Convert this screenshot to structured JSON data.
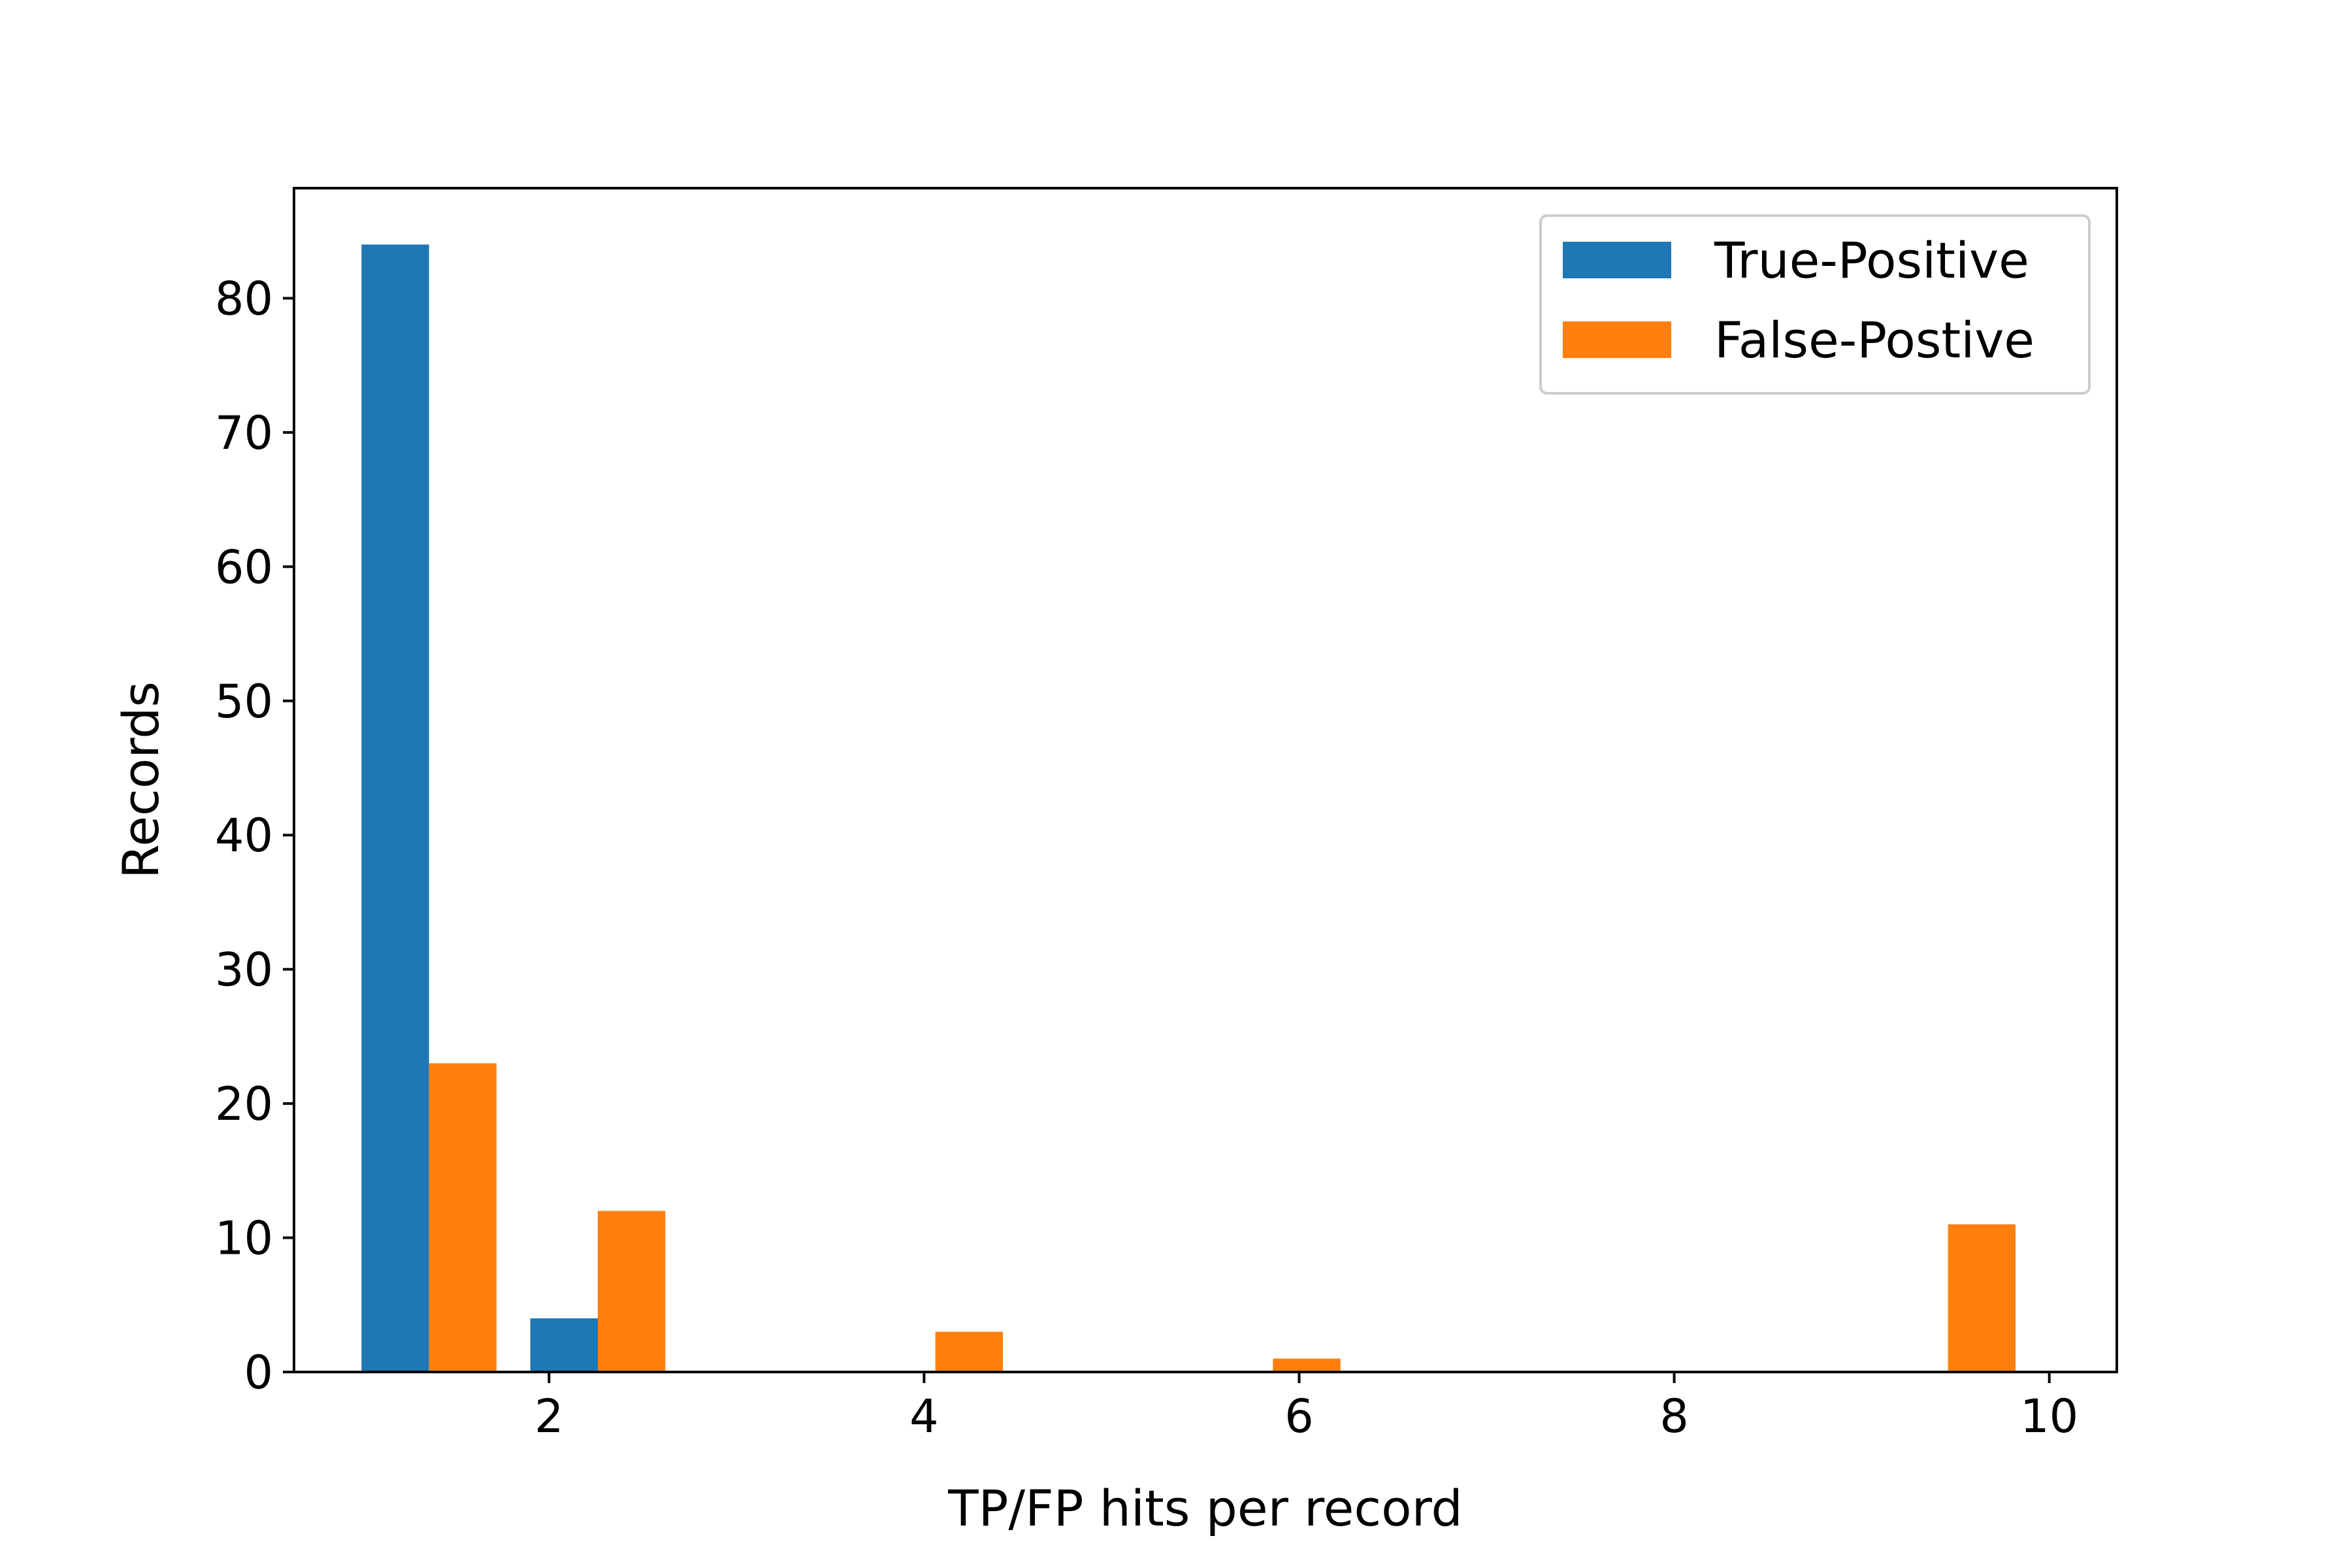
{
  "chart_data": {
    "type": "bar",
    "title": "",
    "xlabel": "TP/FP hits per record",
    "ylabel": "Records",
    "xlim": [
      0.64,
      10.36
    ],
    "ylim": [
      0,
      88.2
    ],
    "xticks": [
      2,
      4,
      6,
      8,
      10
    ],
    "yticks": [
      0,
      10,
      20,
      30,
      40,
      50,
      60,
      70,
      80
    ],
    "bin_width": 0.72,
    "grid": false,
    "legend_position": "top-right",
    "series": [
      {
        "name": "True-Positive",
        "color": "#1f77b4",
        "x": [
          1.0,
          1.9,
          2.8,
          3.7,
          4.6,
          5.5,
          6.4,
          7.3,
          8.2,
          9.1
        ],
        "values": [
          84,
          4,
          0,
          0,
          0,
          0,
          0,
          0,
          0,
          0
        ]
      },
      {
        "name": "False-Postive",
        "color": "#ff7f0e",
        "x": [
          1.0,
          1.9,
          2.8,
          3.7,
          4.6,
          5.5,
          6.4,
          7.3,
          8.2,
          9.1
        ],
        "values": [
          23,
          12,
          0,
          3,
          0,
          1,
          0,
          0,
          0,
          11
        ]
      }
    ]
  }
}
